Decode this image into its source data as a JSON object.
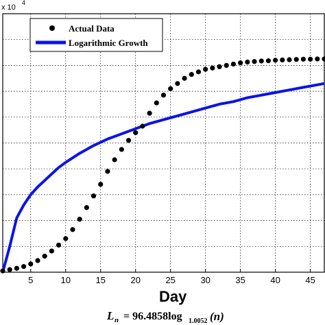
{
  "chart_data": {
    "type": "scatter",
    "xlabel": "Day",
    "exponent_label": {
      "base": "x 10",
      "power": "4"
    },
    "xlim": [
      1,
      47
    ],
    "ylim": [
      0,
      10
    ],
    "xticks": [
      5,
      10,
      15,
      20,
      25,
      30,
      35,
      40,
      45
    ],
    "grid": true,
    "legend_position": "top-left",
    "series": [
      {
        "name": "Actual Data",
        "kind": "markers",
        "color": "#000000",
        "x": [
          1,
          2,
          3,
          4,
          5,
          6,
          7,
          8,
          9,
          10,
          11,
          12,
          13,
          14,
          15,
          16,
          17,
          18,
          19,
          20,
          21,
          22,
          23,
          24,
          25,
          26,
          27,
          28,
          29,
          30,
          31,
          32,
          33,
          34,
          35,
          36,
          37,
          38,
          39,
          40,
          41,
          42,
          43,
          44,
          45,
          46,
          47
        ],
        "y": [
          0.05,
          0.1,
          0.15,
          0.22,
          0.32,
          0.45,
          0.62,
          0.82,
          1.05,
          1.3,
          1.65,
          2.05,
          2.5,
          2.95,
          3.4,
          3.9,
          4.35,
          4.75,
          5.1,
          5.4,
          5.65,
          6.15,
          6.55,
          6.85,
          7.1,
          7.3,
          7.5,
          7.65,
          7.75,
          7.85,
          7.9,
          7.95,
          8.0,
          8.05,
          8.1,
          8.13,
          8.15,
          8.17,
          8.18,
          8.2,
          8.21,
          8.22,
          8.23,
          8.24,
          8.24,
          8.25,
          8.25
        ]
      },
      {
        "name": "Logarithmic Growth",
        "kind": "line",
        "color": "#0a14e6",
        "x": [
          1,
          2,
          3,
          4,
          5,
          6,
          7,
          8,
          9,
          10,
          12,
          14,
          16,
          18,
          20,
          22,
          24,
          26,
          28,
          30,
          32,
          34,
          36,
          38,
          40,
          42,
          44,
          46,
          47
        ],
        "y": [
          0.0,
          1.0,
          2.1,
          2.6,
          3.0,
          3.3,
          3.55,
          3.8,
          4.05,
          4.25,
          4.6,
          4.9,
          5.15,
          5.35,
          5.55,
          5.75,
          5.9,
          6.05,
          6.2,
          6.35,
          6.5,
          6.6,
          6.75,
          6.85,
          6.95,
          7.05,
          7.15,
          7.25,
          7.3
        ]
      }
    ]
  },
  "formula": {
    "lhs": "L",
    "lhs_sub": "n",
    "eq": "= 96.4858log",
    "log_sub": "1.0052",
    "arg": "(n)"
  }
}
